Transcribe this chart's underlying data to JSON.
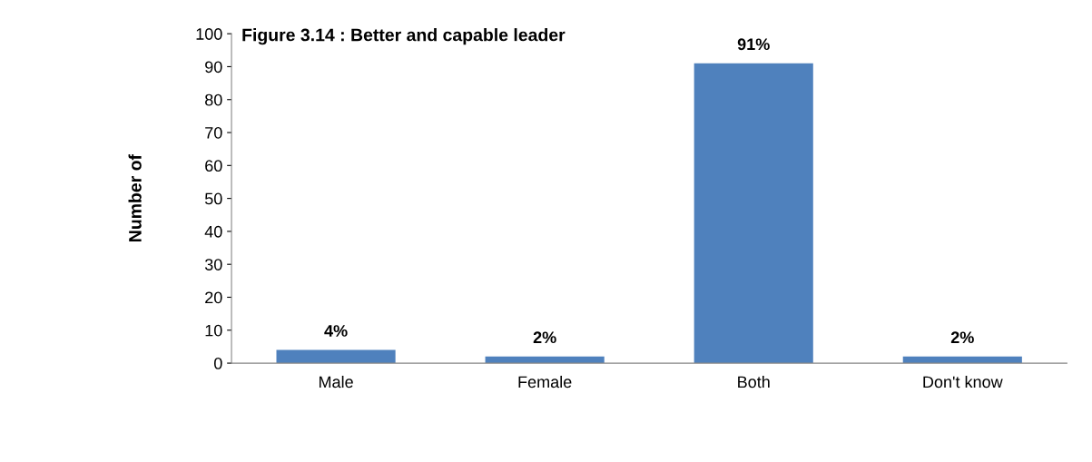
{
  "chart_data": {
    "type": "bar",
    "title": "Figure 3.14 : Better and capable leader",
    "ylabel": "Number of",
    "categories": [
      "Male",
      "Female",
      "Both",
      "Don't know"
    ],
    "values": [
      4,
      2,
      91,
      2
    ],
    "value_labels": [
      "4%",
      "2%",
      "91%",
      "2%"
    ],
    "color": "#4f81bd",
    "ylim": [
      0,
      100
    ],
    "yticks": [
      0,
      10,
      20,
      30,
      40,
      50,
      60,
      70,
      80,
      90,
      100
    ],
    "grid": false,
    "legend": false
  }
}
